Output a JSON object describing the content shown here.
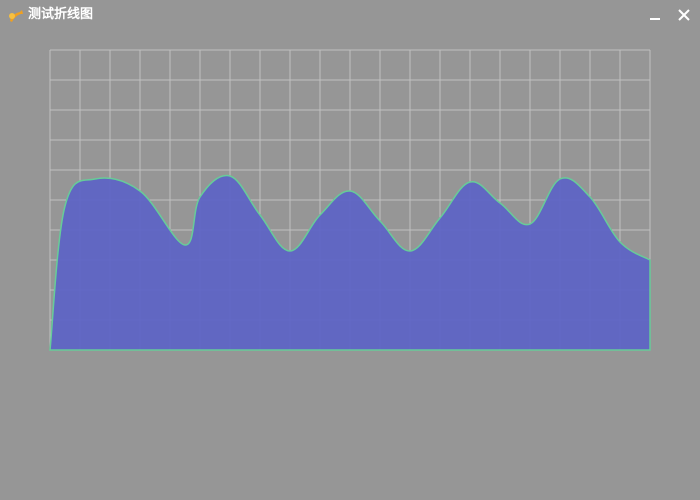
{
  "window": {
    "title": "测试折线图",
    "icon": "app-logo-icon",
    "controls": [
      {
        "name": "minimize",
        "icon": "minimize-icon"
      },
      {
        "name": "close",
        "icon": "close-icon"
      }
    ]
  },
  "chart_data": {
    "type": "area",
    "title": "",
    "xlabel": "",
    "ylabel": "",
    "grid": true,
    "x_divisions": 20,
    "y_divisions": 10,
    "xlim": [
      0,
      20
    ],
    "ylim": [
      0,
      10
    ],
    "colors": {
      "fill": "#5c63c6",
      "line": "#66cc99",
      "grid": "#c0c0c0",
      "background": "#969696"
    },
    "series": [
      {
        "x": [
          0,
          0.5,
          1.5,
          3,
          4.5,
          5,
          6,
          7,
          8,
          9,
          10,
          11,
          12,
          13,
          14,
          15,
          16,
          17,
          18,
          19,
          20
        ],
        "y": [
          0,
          4.8,
          5.7,
          5.3,
          3.5,
          5.1,
          5.8,
          4.5,
          3.3,
          4.5,
          5.3,
          4.3,
          3.3,
          4.4,
          5.6,
          4.9,
          4.2,
          5.7,
          5.1,
          3.6,
          3.0
        ]
      }
    ]
  }
}
